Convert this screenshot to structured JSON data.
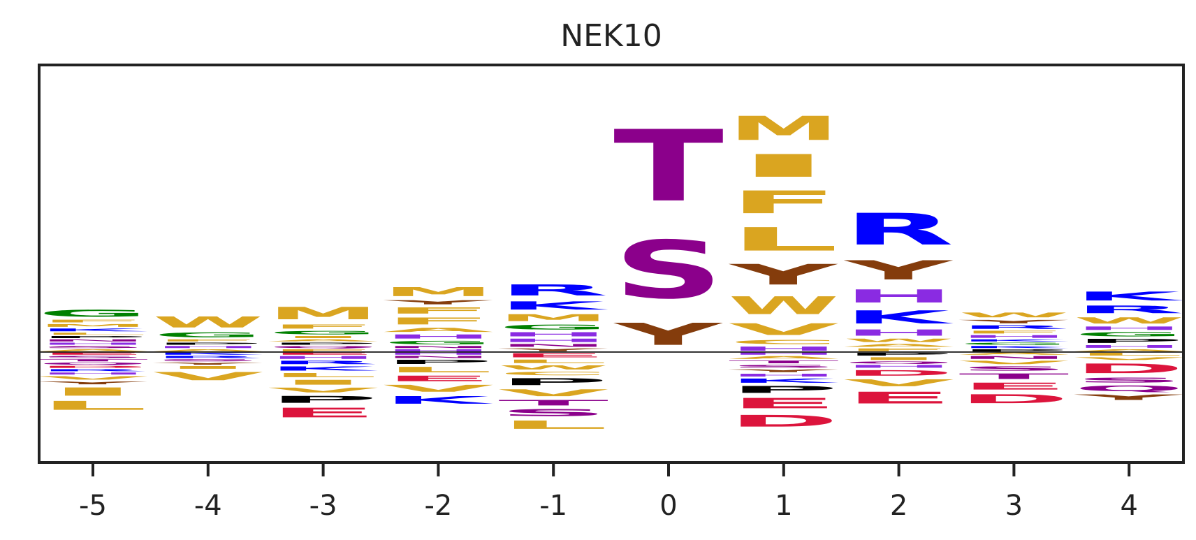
{
  "chart_data": {
    "type": "sequence-logo",
    "title": "NEK10",
    "xlabel": "",
    "ylabel": "",
    "x_ticks": [
      "-5",
      "-4",
      "-3",
      "-2",
      "-1",
      "0",
      "1",
      "2",
      "3",
      "4"
    ],
    "y_range": [
      -1.0,
      2.6
    ],
    "colors": {
      "S": "#8B008B",
      "T": "#8B008B",
      "C": "#DAA520",
      "Q": "#8B008B",
      "N": "#8B008B",
      "M": "#DAA520",
      "L": "#DAA520",
      "I": "#DAA520",
      "V": "#DAA520",
      "F": "#DAA520",
      "W": "#DAA520",
      "A": "#DAA520",
      "Y": "#843C0C",
      "G": "#008000",
      "P": "#000000",
      "K": "#0000FF",
      "R": "#0000FF",
      "H": "#8A2BE2",
      "D": "#DC143C",
      "E": "#DC143C"
    },
    "positions": [
      {
        "pos": "-5",
        "up": [
          [
            "A",
            0.03
          ],
          [
            "S",
            0.03
          ],
          [
            "H",
            0.03
          ],
          [
            "N",
            0.03
          ],
          [
            "P",
            0.03
          ],
          [
            "L",
            0.03
          ],
          [
            "K",
            0.04
          ],
          [
            "M",
            0.04
          ],
          [
            "F",
            0.04
          ],
          [
            "G",
            0.1
          ]
        ],
        "down": [
          [
            "E",
            0.03
          ],
          [
            "S",
            0.03
          ],
          [
            "T",
            0.03
          ],
          [
            "Q",
            0.03
          ],
          [
            "D",
            0.03
          ],
          [
            "R",
            0.03
          ],
          [
            "H",
            0.03
          ],
          [
            "V",
            0.05
          ],
          [
            "Y",
            0.04
          ],
          [
            "I",
            0.12
          ],
          [
            "L",
            0.13
          ]
        ]
      },
      {
        "pos": "-4",
        "up": [
          [
            "A",
            0.03
          ],
          [
            "H",
            0.03
          ],
          [
            "P",
            0.03
          ],
          [
            "F",
            0.03
          ],
          [
            "G",
            0.07
          ],
          [
            "W",
            0.16
          ]
        ],
        "down": [
          [
            "K",
            0.03
          ],
          [
            "R",
            0.03
          ],
          [
            "S",
            0.03
          ],
          [
            "Y",
            0.03
          ],
          [
            "I",
            0.04
          ],
          [
            "V",
            0.12
          ]
        ]
      },
      {
        "pos": "-3",
        "up": [
          [
            "F",
            0.03
          ],
          [
            "Q",
            0.03
          ],
          [
            "P",
            0.03
          ],
          [
            "A",
            0.03
          ],
          [
            "I",
            0.03
          ],
          [
            "G",
            0.05
          ],
          [
            "F",
            0.06
          ],
          [
            "M",
            0.18
          ]
        ],
        "down": [
          [
            "E",
            0.03
          ],
          [
            "H",
            0.04
          ],
          [
            "R",
            0.05
          ],
          [
            "K",
            0.06
          ],
          [
            "L",
            0.06
          ],
          [
            "I",
            0.07
          ],
          [
            "V",
            0.07
          ],
          [
            "P",
            0.1
          ],
          [
            "E",
            0.14
          ]
        ]
      },
      {
        "pos": "-2",
        "up": [
          [
            "H",
            0.03
          ],
          [
            "N",
            0.03
          ],
          [
            "G",
            0.05
          ],
          [
            "H",
            0.06
          ],
          [
            "A",
            0.06
          ],
          [
            "F",
            0.1
          ],
          [
            "F",
            0.09
          ],
          [
            "Y",
            0.06
          ],
          [
            "M",
            0.13
          ]
        ],
        "down": [
          [
            "H",
            0.03
          ],
          [
            "N",
            0.03
          ],
          [
            "P",
            0.06
          ],
          [
            "L",
            0.08
          ],
          [
            "E",
            0.08
          ],
          [
            "V",
            0.1
          ],
          [
            "K",
            0.11
          ]
        ]
      },
      {
        "pos": "-1",
        "up": [
          [
            "Y",
            0.04
          ],
          [
            "N",
            0.04
          ],
          [
            "H",
            0.05
          ],
          [
            "H",
            0.06
          ],
          [
            "G",
            0.07
          ],
          [
            "M",
            0.1
          ],
          [
            "K",
            0.12
          ],
          [
            "R",
            0.16
          ]
        ],
        "down": [
          [
            "E",
            0.06
          ],
          [
            "L",
            0.05
          ],
          [
            "W",
            0.06
          ],
          [
            "C",
            0.05
          ],
          [
            "P",
            0.1
          ],
          [
            "V",
            0.1
          ],
          [
            "T",
            0.08
          ],
          [
            "S",
            0.1
          ],
          [
            "L",
            0.12
          ]
        ]
      },
      {
        "pos": "0",
        "up": [
          [
            "Y",
            0.32
          ],
          [
            "S",
            0.84
          ],
          [
            "T",
            1.04
          ]
        ],
        "down": []
      },
      {
        "pos": "1",
        "up": [
          [
            "H",
            0.06
          ],
          [
            "C",
            0.06
          ],
          [
            "V",
            0.17
          ],
          [
            "W",
            0.26
          ],
          [
            "Y",
            0.3
          ],
          [
            "L",
            0.34
          ],
          [
            "F",
            0.33
          ],
          [
            "I",
            0.33
          ],
          [
            "M",
            0.35
          ]
        ],
        "down": [
          [
            "H",
            0.03
          ],
          [
            "A",
            0.04
          ],
          [
            "T",
            0.04
          ],
          [
            "S",
            0.04
          ],
          [
            "Y",
            0.04
          ],
          [
            "H",
            0.04
          ],
          [
            "K",
            0.06
          ],
          [
            "P",
            0.1
          ],
          [
            "E",
            0.15
          ],
          [
            "D",
            0.17
          ]
        ]
      },
      {
        "pos": "2",
        "up": [
          [
            "F",
            0.04
          ],
          [
            "A",
            0.04
          ],
          [
            "W",
            0.05
          ],
          [
            "H",
            0.09
          ],
          [
            "K",
            0.19
          ],
          [
            "H",
            0.19
          ],
          [
            "Y",
            0.28
          ],
          [
            "R",
            0.46
          ]
        ],
        "down": [
          [
            "P",
            0.04
          ],
          [
            "I",
            0.04
          ],
          [
            "Q",
            0.03
          ],
          [
            "H",
            0.04
          ],
          [
            "D",
            0.08
          ],
          [
            "V",
            0.1
          ],
          [
            "E",
            0.17
          ]
        ]
      },
      {
        "pos": "3",
        "up": [
          [
            "P",
            0.03
          ],
          [
            "K",
            0.03
          ],
          [
            "G",
            0.03
          ],
          [
            "K",
            0.03
          ],
          [
            "H",
            0.04
          ],
          [
            "F",
            0.04
          ],
          [
            "R",
            0.05
          ],
          [
            "Y",
            0.05
          ],
          [
            "W",
            0.07
          ]
        ],
        "down": [
          [
            "A",
            0.03
          ],
          [
            "N",
            0.04
          ],
          [
            "V",
            0.05
          ],
          [
            "S",
            0.06
          ],
          [
            "T",
            0.08
          ],
          [
            "E",
            0.1
          ],
          [
            "D",
            0.13
          ]
        ]
      },
      {
        "pos": "4",
        "up": [
          [
            "A",
            0.03
          ],
          [
            "H",
            0.04
          ],
          [
            "P",
            0.06
          ],
          [
            "G",
            0.06
          ],
          [
            "H",
            0.05
          ],
          [
            "W",
            0.09
          ],
          [
            "R",
            0.11
          ],
          [
            "K",
            0.13
          ]
        ],
        "down": [
          [
            "L",
            0.04
          ],
          [
            "V",
            0.04
          ],
          [
            "D",
            0.14
          ],
          [
            "S",
            0.07
          ],
          [
            "Q",
            0.08
          ],
          [
            "Y",
            0.08
          ]
        ]
      }
    ]
  }
}
